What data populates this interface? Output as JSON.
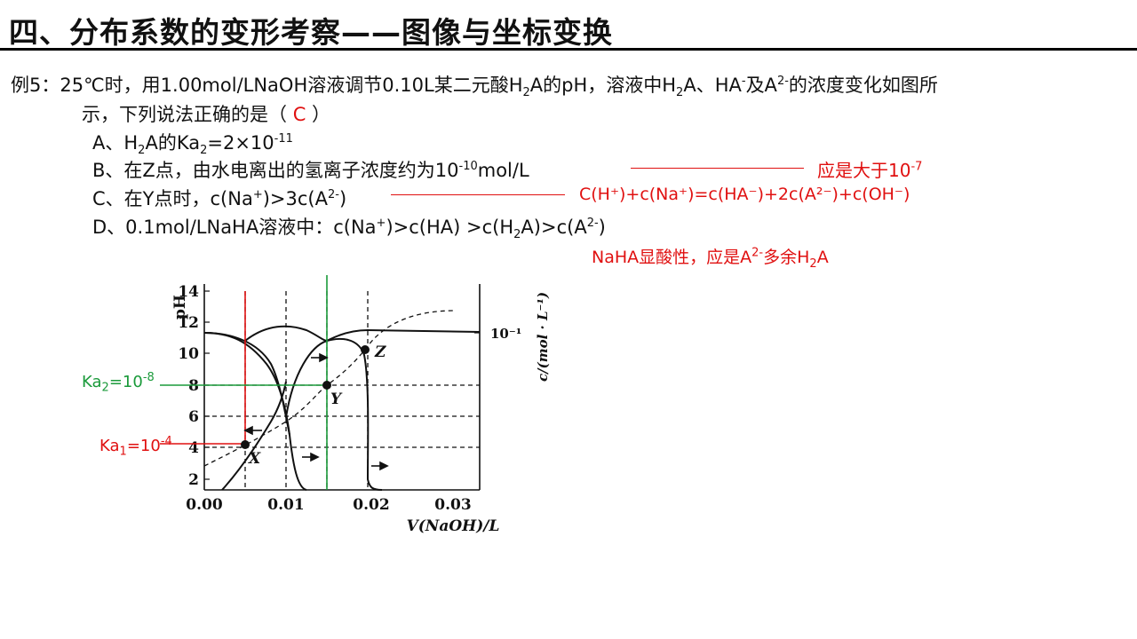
{
  "title": "四、分布系数的变形考察——图像与坐标变换",
  "question": {
    "stem1_a": "例5：25℃时，用1.00mol/LNaOH溶液调节0.10L某二元酸H",
    "stem1_b": "A的pH，溶液中H",
    "stem1_c": "A、HA",
    "stem1_d": "及A",
    "stem1_e": "的浓度变化如图所",
    "stem2_a": "示，下列说法正确的是（ ",
    "answer": "C",
    "stem2_b": " ）",
    "sub2": "2",
    "sup_minus": "-",
    "sup_2minus": "2-"
  },
  "options": {
    "A_a": "A、H",
    "A_b": "A的Ka",
    "A_c": "=2×10",
    "A_exp": "-11",
    "B_a": "B、在Z点，由水电离出的氢离子浓度约为10",
    "B_exp": "-10",
    "B_b": "mol/L",
    "C_a": "C、在Y点时，c(Na",
    "C_b": ")>3c(A",
    "C_c": ")",
    "D_a": "D、0.1mol/LNaHA溶液中：c(Na",
    "D_b": ")>c(HA",
    "D_c": ") >c(H",
    "D_d": "A)>c(A",
    "D_e": ")",
    "sup_plus": "+",
    "sup_2minus": "2-",
    "sub2": "2"
  },
  "notes": {
    "B_note_a": "应是大于10",
    "B_note_exp": "-7",
    "C_note": "C(H⁺)+c(Na⁺)=c(HA⁻)+2c(A²⁻)+c(OH⁻)",
    "D_note_a": "NaHA显酸性，应是A",
    "D_note_sup": "2-",
    "D_note_b": "多余H",
    "D_note_sub": "2",
    "D_note_c": "A"
  },
  "graph": {
    "y_left_label": "pH",
    "y_right_label": "c/(mol · L⁻¹)",
    "right_tick": "10⁻¹",
    "x_label": "V(NaOH)/L",
    "x_ticks": [
      "0.00",
      "0.01",
      "0.02",
      "0.03"
    ],
    "y_ticks": [
      "2",
      "4",
      "6",
      "8",
      "10",
      "12",
      "14"
    ],
    "point_labels": [
      "X",
      "Y",
      "Z"
    ],
    "ka2_note": "Ka",
    "ka2_sub": "2",
    "ka2_val": "=10",
    "ka2_exp": "-8",
    "ka1_note": "Ka",
    "ka1_sub": "1",
    "ka1_val": "=10",
    "ka1_exp": "-4",
    "colors": {
      "red": "#e01010",
      "green": "#1a9a3a"
    }
  }
}
